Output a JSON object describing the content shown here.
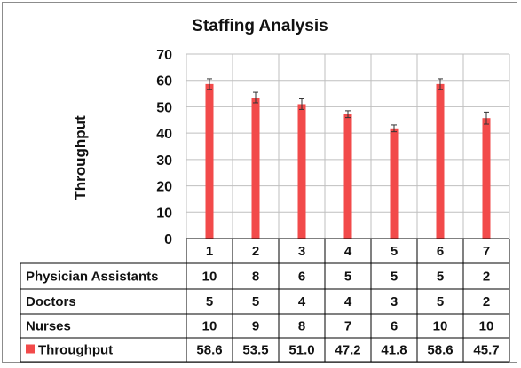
{
  "chart_data": {
    "type": "bar",
    "title": "Staffing Analysis",
    "ylabel": "Throughput",
    "ylim": [
      0,
      70
    ],
    "yticks": [
      0,
      10,
      20,
      30,
      40,
      50,
      60,
      70
    ],
    "categories": [
      "1",
      "2",
      "3",
      "4",
      "5",
      "6",
      "7"
    ],
    "series": [
      {
        "name": "Throughput",
        "values": [
          58.6,
          53.5,
          51.0,
          47.2,
          41.8,
          58.6,
          45.7
        ],
        "value_labels": [
          "58.6",
          "53.5",
          "51.0",
          "47.2",
          "41.8",
          "58.6",
          "45.7"
        ],
        "error": [
          2.0,
          2.0,
          2.0,
          1.3,
          1.3,
          2.0,
          2.3
        ],
        "color": "#f24a4a"
      }
    ],
    "grid": true,
    "data_table": {
      "rows": [
        {
          "label": "Physician Assistants",
          "values": [
            "10",
            "8",
            "6",
            "5",
            "5",
            "5",
            "2"
          ]
        },
        {
          "label": "Doctors",
          "values": [
            "5",
            "5",
            "4",
            "4",
            "3",
            "5",
            "2"
          ]
        },
        {
          "label": "Nurses",
          "values": [
            "10",
            "9",
            "8",
            "7",
            "6",
            "10",
            "10"
          ]
        }
      ],
      "legend_row_label": "Throughput"
    }
  }
}
